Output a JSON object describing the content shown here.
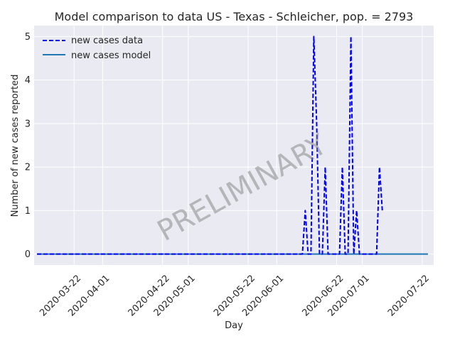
{
  "chart_data": {
    "type": "line",
    "title": "Model comparison to data US - Texas - Schleicher, pop. = 2793",
    "xlabel": "Day",
    "ylabel": "Number of new cases reported",
    "xlim": [
      "2020-03-08",
      "2020-07-26"
    ],
    "ylim": [
      -0.25,
      5.25
    ],
    "grid": true,
    "legend_position": "top-left",
    "watermark": "PRELIMINARY",
    "x_ticks": [
      "2020-03-22",
      "2020-04-01",
      "2020-04-22",
      "2020-05-01",
      "2020-05-22",
      "2020-06-01",
      "2020-06-22",
      "2020-07-01",
      "2020-07-22"
    ],
    "y_ticks": [
      0,
      1,
      2,
      3,
      4,
      5
    ],
    "series": [
      {
        "name": "new cases data",
        "style": "dashed",
        "color": "#0000ee",
        "points": [
          [
            "2020-03-09",
            0
          ],
          [
            "2020-06-10",
            0
          ],
          [
            "2020-06-11",
            1
          ],
          [
            "2020-06-12",
            0
          ],
          [
            "2020-06-13",
            0
          ],
          [
            "2020-06-14",
            5
          ],
          [
            "2020-06-15",
            3
          ],
          [
            "2020-06-16",
            0
          ],
          [
            "2020-06-17",
            0
          ],
          [
            "2020-06-18",
            2
          ],
          [
            "2020-06-19",
            0
          ],
          [
            "2020-06-20",
            0
          ],
          [
            "2020-06-23",
            0
          ],
          [
            "2020-06-24",
            2
          ],
          [
            "2020-06-25",
            0
          ],
          [
            "2020-06-26",
            0
          ],
          [
            "2020-06-27",
            5
          ],
          [
            "2020-06-28",
            0
          ],
          [
            "2020-06-29",
            1
          ],
          [
            "2020-06-30",
            0
          ],
          [
            "2020-07-01",
            0
          ],
          [
            "2020-07-06",
            0
          ],
          [
            "2020-07-07",
            2
          ],
          [
            "2020-07-08",
            1
          ]
        ]
      },
      {
        "name": "new cases model",
        "style": "solid",
        "color": "#1f77b4",
        "points": [
          [
            "2020-03-09",
            0
          ],
          [
            "2020-07-24",
            0
          ]
        ]
      }
    ]
  }
}
